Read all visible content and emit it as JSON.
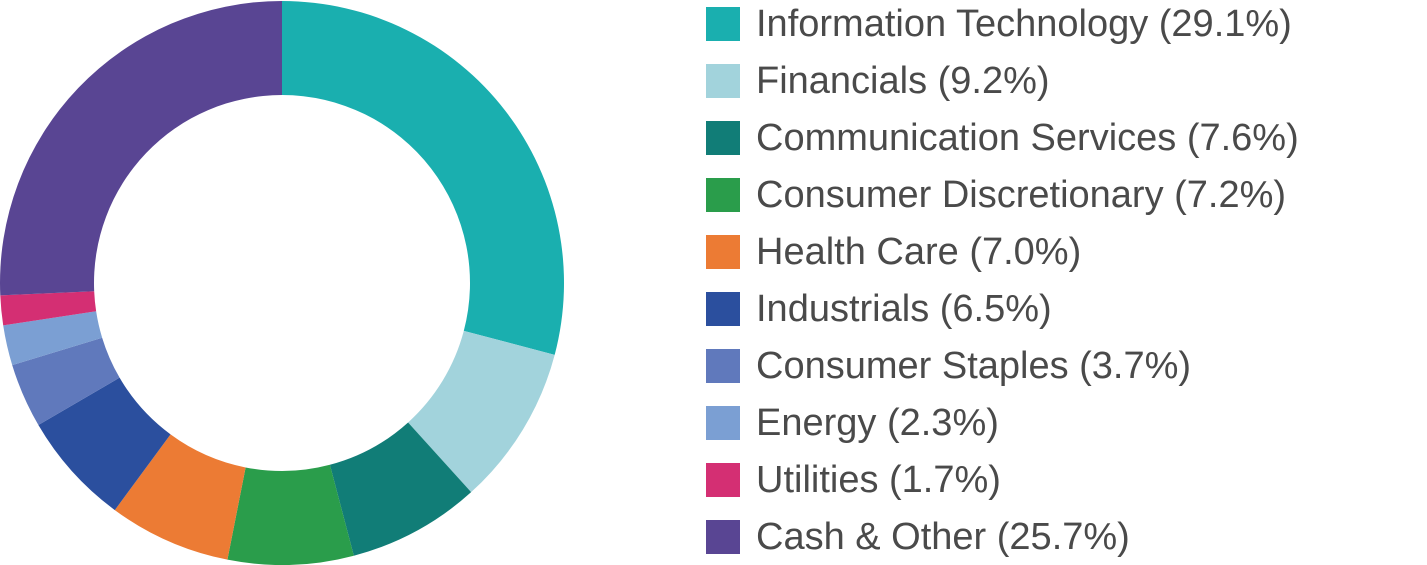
{
  "chart_data": {
    "type": "pie",
    "donut": true,
    "title": "",
    "legend_placement": "right",
    "slices": [
      {
        "label": "Information Technology (29.1%)",
        "value": 29.1,
        "color": "#1aafaf"
      },
      {
        "label": "Financials (9.2%)",
        "value": 9.2,
        "color": "#a2d3dc"
      },
      {
        "label": "Communication Services (7.6%)",
        "value": 7.6,
        "color": "#117d77"
      },
      {
        "label": "Consumer Discretionary (7.2%)",
        "value": 7.2,
        "color": "#2a9d4b"
      },
      {
        "label": "Health Care (7.0%)",
        "value": 7.0,
        "color": "#ec7b34"
      },
      {
        "label": "Industrials (6.5%)",
        "value": 6.5,
        "color": "#2b4f9e"
      },
      {
        "label": "Consumer Staples (3.7%)",
        "value": 3.7,
        "color": "#6079bc"
      },
      {
        "label": "Energy (2.3%)",
        "value": 2.3,
        "color": "#7b9fd3"
      },
      {
        "label": "Utilities (1.7%)",
        "value": 1.7,
        "color": "#d42f73"
      },
      {
        "label": "Cash & Other (25.7%)",
        "value": 25.7,
        "color": "#594593"
      }
    ]
  }
}
